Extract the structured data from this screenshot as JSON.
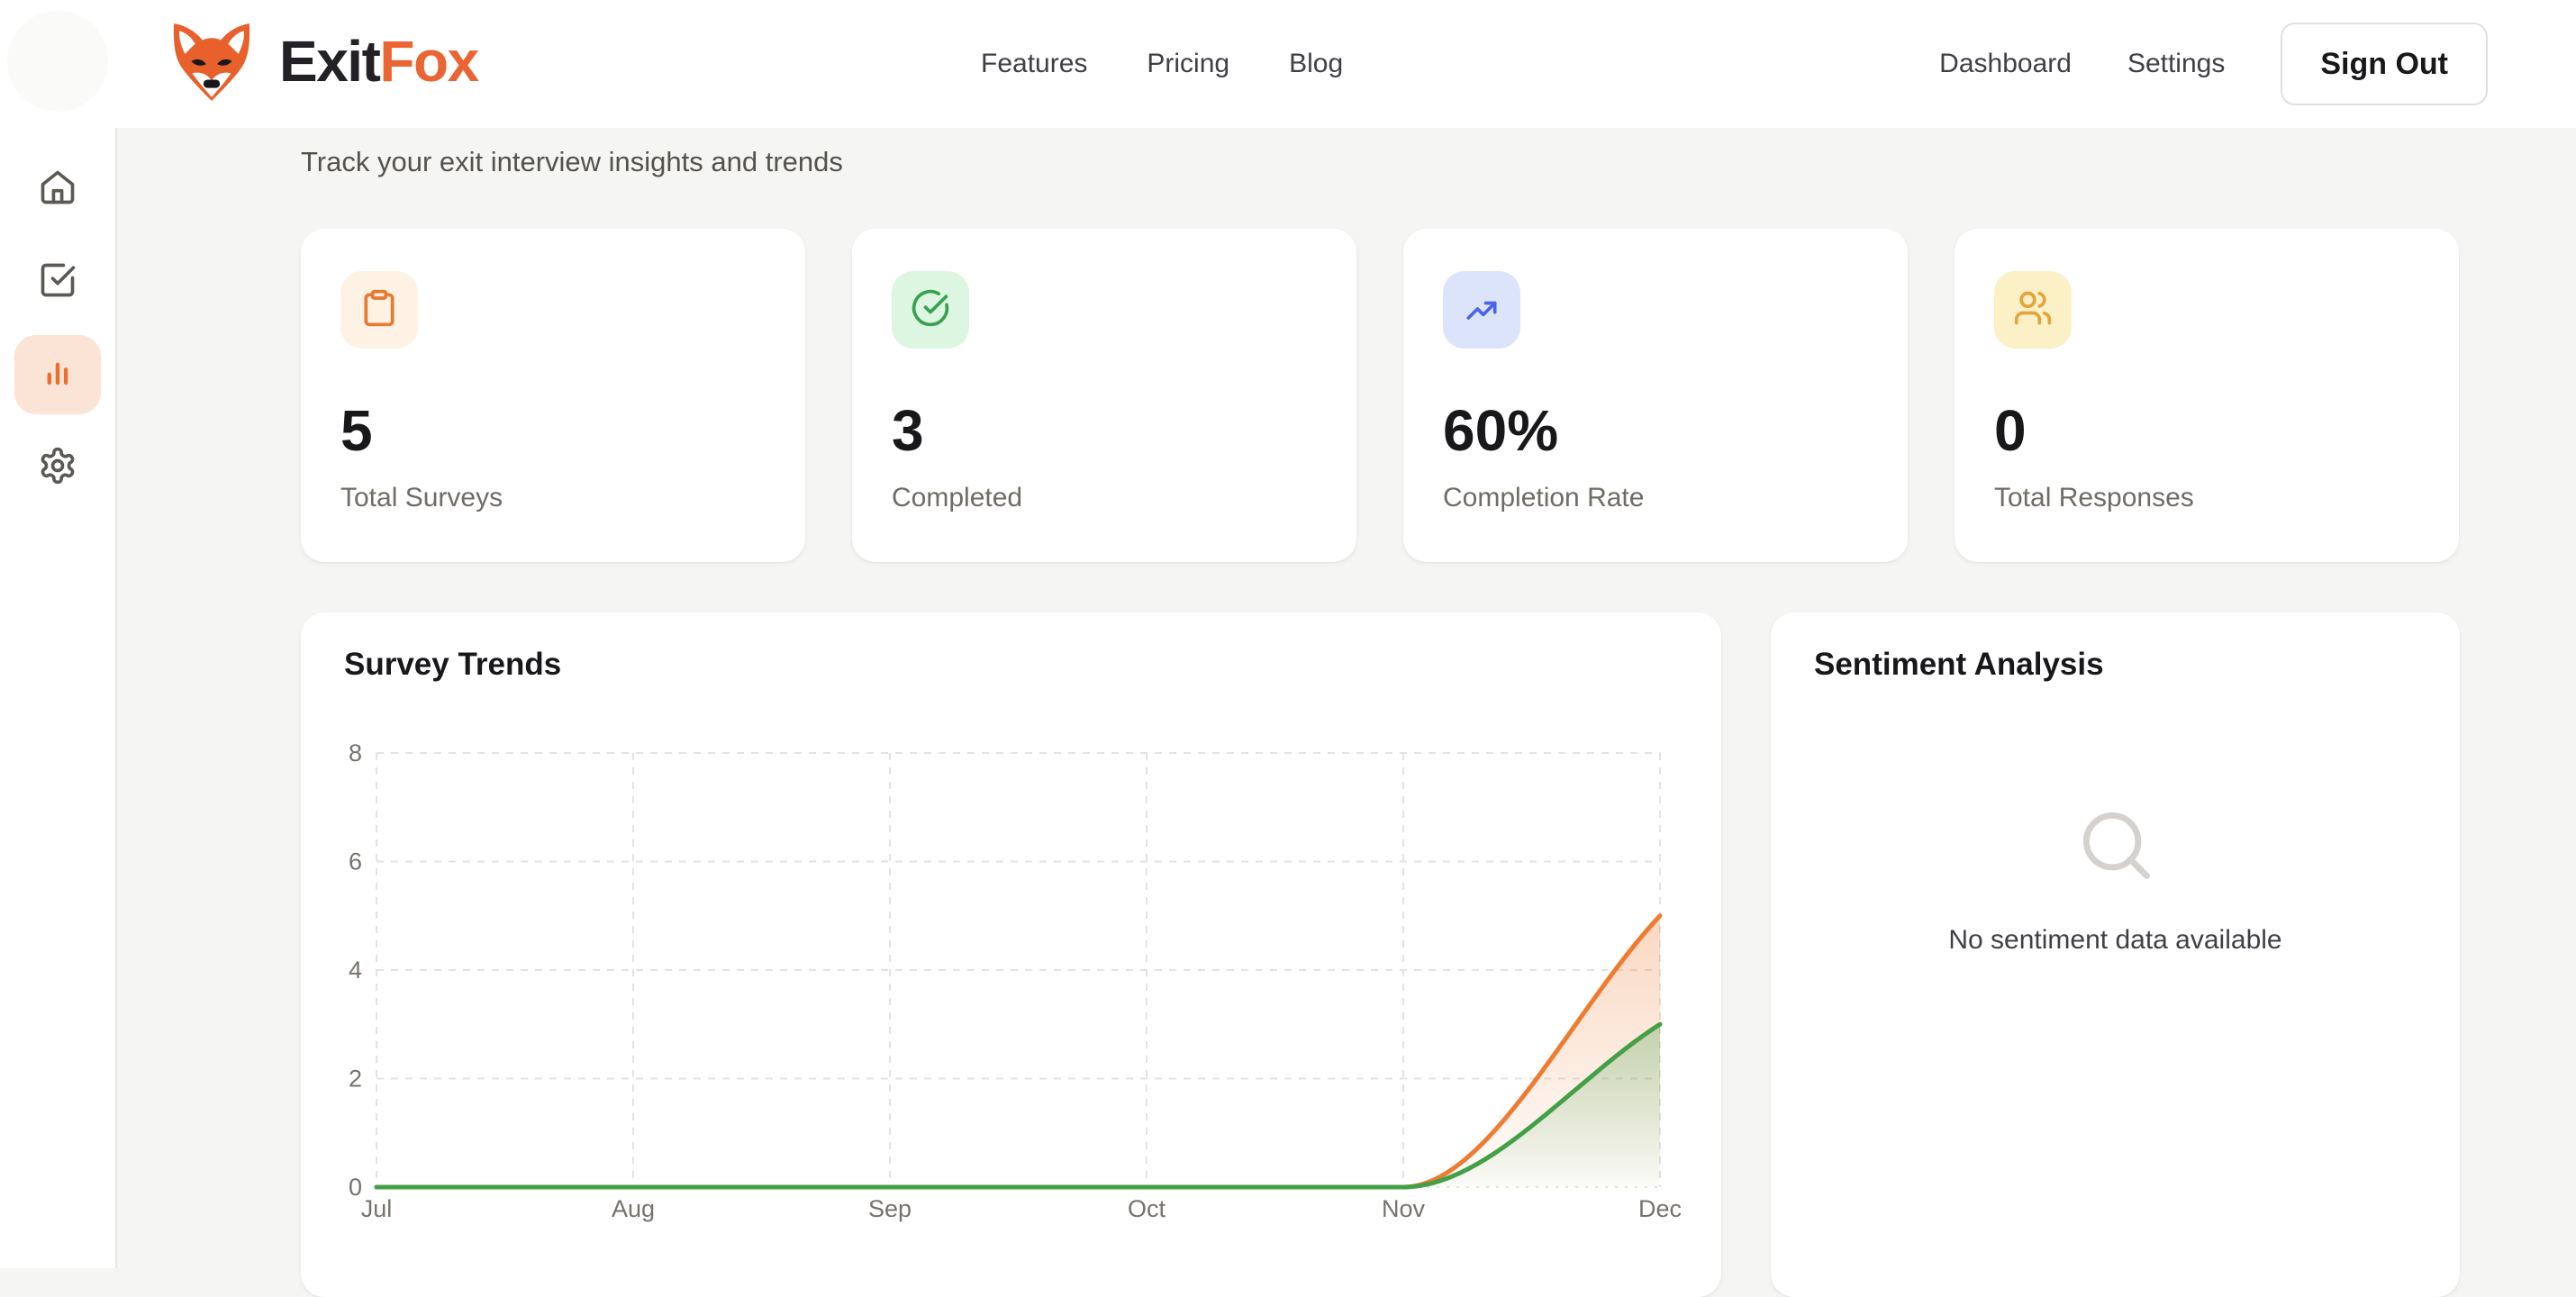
{
  "brand": {
    "name_part1": "Exit",
    "name_part2": "Fox",
    "accent_color": "#eb6434"
  },
  "header": {
    "nav": [
      {
        "label": "Features"
      },
      {
        "label": "Pricing"
      },
      {
        "label": "Blog"
      }
    ],
    "links": [
      {
        "label": "Dashboard"
      },
      {
        "label": "Settings"
      }
    ],
    "sign_out_label": "Sign Out"
  },
  "sidebar": {
    "items": [
      {
        "icon": "home-icon",
        "active": false
      },
      {
        "icon": "square-check-icon",
        "active": false
      },
      {
        "icon": "bar-chart-icon",
        "active": true
      },
      {
        "icon": "settings-icon",
        "active": false
      }
    ],
    "active_color": "#e8712f"
  },
  "page": {
    "subtitle": "Track your exit interview insights and trends"
  },
  "stats": [
    {
      "value": "5",
      "label": "Total Surveys",
      "icon": "clipboard-icon",
      "tile_bg": "#fdf2e3",
      "icon_color": "#e8792f"
    },
    {
      "value": "3",
      "label": "Completed",
      "icon": "circle-check-icon",
      "tile_bg": "#dcf6e2",
      "icon_color": "#38a14f"
    },
    {
      "value": "60%",
      "label": "Completion Rate",
      "icon": "trending-up-icon",
      "tile_bg": "#dbe4fa",
      "icon_color": "#4a63e8"
    },
    {
      "value": "0",
      "label": "Total Responses",
      "icon": "users-icon",
      "tile_bg": "#fbf0c6",
      "icon_color": "#e5a33c"
    }
  ],
  "trends_card": {
    "title": "Survey Trends"
  },
  "sentiment_card": {
    "title": "Sentiment Analysis",
    "empty_text": "No sentiment data available"
  },
  "chart_data": {
    "type": "line",
    "title": "Survey Trends",
    "categories": [
      "Jul",
      "Aug",
      "Sep",
      "Oct",
      "Nov",
      "Dec"
    ],
    "series": [
      {
        "name": "series_orange",
        "color": "#ed7c31",
        "values": [
          0,
          0,
          0,
          0,
          0,
          5
        ]
      },
      {
        "name": "series_green",
        "color": "#43a047",
        "values": [
          0,
          0,
          0,
          0,
          0,
          3
        ]
      }
    ],
    "xlabel": "",
    "ylabel": "",
    "yticks": [
      0,
      2,
      4,
      6,
      8
    ],
    "ylim": [
      0,
      8
    ],
    "grid": true,
    "grid_style": "dashed",
    "legend": false,
    "area_fill": true,
    "curve": "smooth-monotone"
  }
}
